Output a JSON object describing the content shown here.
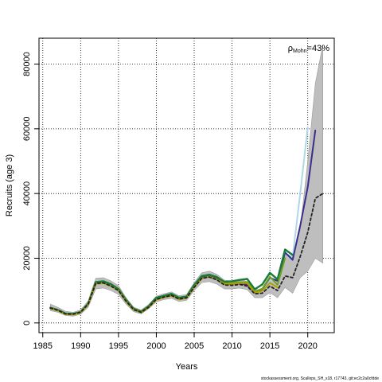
{
  "chart_data": {
    "type": "line",
    "title": "",
    "xlabel": "Years",
    "ylabel": "Recruits (age 3)",
    "xlim": [
      1984.5,
      2023.5
    ],
    "ylim": [
      -3000,
      88000
    ],
    "x_ticks": [
      1985,
      1990,
      1995,
      2000,
      2005,
      2010,
      2015,
      2020
    ],
    "y_ticks": [
      0,
      20000,
      40000,
      60000,
      80000
    ],
    "grid": true,
    "annotation": {
      "rho": "ρ",
      "subscript": "Mohn",
      "value": "=43%"
    },
    "footer": "stockassessment.org, Scallops_SH_s18, r17743, git:ec2c2a0cfdde",
    "band": {
      "x": [
        1986,
        1987,
        1988,
        1989,
        1990,
        1991,
        1992,
        1993,
        1994,
        1995,
        1996,
        1997,
        1998,
        1999,
        2000,
        2001,
        2002,
        2003,
        2004,
        2005,
        2006,
        2007,
        2008,
        2009,
        2010,
        2011,
        2012,
        2013,
        2014,
        2015,
        2016,
        2017,
        2018,
        2019,
        2020,
        2021,
        2022
      ],
      "lower": [
        3800,
        3300,
        2300,
        2100,
        2700,
        4900,
        10500,
        10800,
        10000,
        8800,
        5800,
        3500,
        2800,
        4400,
        6500,
        7200,
        7600,
        6600,
        7000,
        10000,
        12500,
        12800,
        12000,
        10500,
        10500,
        10800,
        10300,
        7800,
        7800,
        9400,
        7800,
        11000,
        9200,
        14000,
        16000,
        20000,
        18500
      ],
      "upper": [
        5800,
        4800,
        3600,
        3300,
        4000,
        6800,
        13800,
        14000,
        13000,
        11500,
        7800,
        4900,
        4000,
        5700,
        8300,
        9000,
        9600,
        8400,
        8800,
        12500,
        15500,
        16000,
        15000,
        13200,
        13000,
        13500,
        12800,
        10200,
        10500,
        13400,
        12800,
        21000,
        20500,
        29000,
        50000,
        74000,
        86000
      ]
    },
    "series": [
      {
        "color": "#add8e6",
        "width": 2,
        "values": [
          4600,
          3900,
          2800,
          2700,
          3300,
          5800,
          12300,
          12500,
          11500,
          10100,
          6800,
          4200,
          3300,
          5000,
          7400,
          8000,
          8600,
          7400,
          7800,
          11200,
          14000,
          14500,
          13600,
          12000,
          12000,
          12300,
          11800,
          9200,
          10000,
          13400,
          12600,
          21500,
          20300,
          40000,
          60500
        ]
      },
      {
        "color": "#3a2d8c",
        "width": 2,
        "values": [
          4600,
          3900,
          2800,
          2700,
          3300,
          5800,
          12300,
          12500,
          11500,
          10100,
          6800,
          4200,
          3300,
          5000,
          7400,
          8000,
          8600,
          7400,
          7800,
          11200,
          14000,
          14500,
          13600,
          12000,
          12000,
          12300,
          11800,
          9400,
          10500,
          14000,
          13000,
          21800,
          19500,
          30000,
          42000,
          59500
        ]
      },
      {
        "color": "#1a7a3c",
        "width": 2.4,
        "values": [
          4700,
          4000,
          2900,
          2800,
          3400,
          6000,
          12600,
          12900,
          12000,
          10500,
          7100,
          4400,
          3500,
          5200,
          7800,
          8400,
          9000,
          7800,
          8200,
          11700,
          14500,
          14900,
          14200,
          12700,
          12900,
          13300,
          13600,
          10400,
          11900,
          15500,
          13500,
          22700,
          21000
        ]
      },
      {
        "color": "#6fa020",
        "width": 2,
        "values": [
          4500,
          3800,
          2700,
          2600,
          3200,
          5700,
          12100,
          12300,
          11400,
          10000,
          6700,
          4100,
          3200,
          4900,
          7200,
          7900,
          8400,
          7300,
          7700,
          11000,
          13800,
          14300,
          13400,
          12200,
          12400,
          12600,
          12600,
          9700,
          10600,
          14300,
          11800,
          20000
        ]
      },
      {
        "color": "#b0a000",
        "width": 2,
        "values": [
          4500,
          3800,
          2700,
          2600,
          3200,
          5700,
          12100,
          12300,
          11400,
          10000,
          6700,
          4100,
          3200,
          4900,
          7200,
          7900,
          8400,
          7300,
          7700,
          11000,
          13800,
          14300,
          13400,
          12000,
          12100,
          12300,
          12300,
          9300,
          9900,
          12400,
          11000
        ]
      },
      {
        "color": "#222222",
        "width": 1.8,
        "dash": "3,3",
        "values": [
          4600,
          3900,
          2800,
          2700,
          3300,
          5800,
          12200,
          12400,
          11400,
          10000,
          6700,
          4100,
          3300,
          4900,
          7300,
          8000,
          8500,
          7400,
          7800,
          11000,
          13800,
          14200,
          13300,
          11700,
          11600,
          11900,
          11400,
          9000,
          9200,
          11400,
          10000,
          14500,
          14000,
          20500,
          28000,
          38500,
          40000
        ]
      }
    ]
  }
}
